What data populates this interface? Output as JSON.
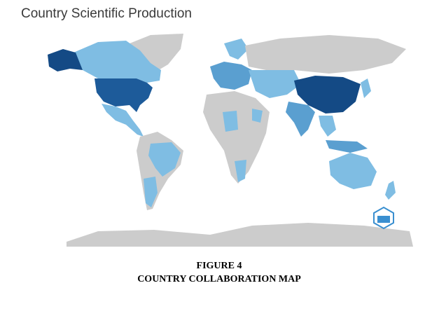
{
  "title": "Country Scientific Production",
  "caption": {
    "label": "FIGURE 4",
    "title": "COUNTRY COLLABORATION MAP"
  }
}
